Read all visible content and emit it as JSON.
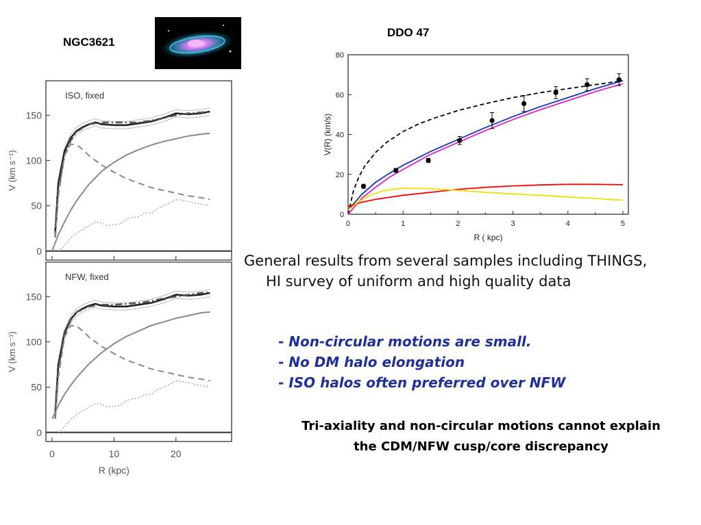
{
  "slide": {
    "ngc_title": "NGC3621",
    "ddo_title": "DDO 47",
    "general_line1": "General results  from several samples including THINGS,",
    "general_line2": "HI survey of uniform and high quality data",
    "bullets": [
      "Non-circular motions are small.",
      "No DM halo elongation",
      "ISO halos often  preferred over NFW"
    ],
    "conclusion_line1": "Tri-axiality and non-circular motions  cannot explain",
    "conclusion_line2": "the CDM/NFW cusp/core discrepancy",
    "colors": {
      "bullet_text": "#1f2f9e"
    }
  },
  "chart_data": [
    {
      "type": "line",
      "panel": "ISO, fixed",
      "xlabel": "R (kpc)",
      "ylabel": "V (km s⁻¹)",
      "xlim": [
        -1,
        29
      ],
      "ylim": [
        -10,
        188
      ],
      "xticks": [
        0,
        10,
        20
      ],
      "yticks": [
        0,
        50,
        100,
        150
      ],
      "series": [
        {
          "style": "observed-thick",
          "x": [
            0.5,
            1,
            2,
            3,
            4,
            5,
            6,
            7,
            8,
            10,
            12,
            14,
            16,
            18,
            20,
            22,
            24,
            25.5
          ],
          "y": [
            20,
            75,
            110,
            125,
            133,
            137,
            140,
            142,
            140,
            139,
            139,
            141,
            143,
            147,
            152,
            151,
            152,
            154
          ]
        },
        {
          "style": "model-dashdot",
          "x": [
            0.5,
            1,
            2,
            3,
            4,
            6,
            8,
            10,
            12,
            14,
            16,
            18,
            20,
            22,
            24,
            25.5
          ],
          "y": [
            15,
            68,
            105,
            122,
            132,
            140,
            142,
            142,
            142,
            142,
            144,
            147,
            150,
            152,
            153,
            154
          ]
        },
        {
          "style": "halo-solid",
          "x": [
            0,
            1,
            2,
            3,
            4,
            6,
            8,
            10,
            12,
            14,
            16,
            18,
            20,
            22,
            24,
            25.5
          ],
          "y": [
            0,
            18,
            32,
            45,
            56,
            74,
            88,
            98,
            106,
            112,
            117,
            121,
            124,
            127,
            129,
            130
          ]
        },
        {
          "style": "disk-dashed",
          "x": [
            0.5,
            1,
            2,
            3,
            4,
            5,
            6,
            8,
            10,
            12,
            14,
            16,
            18,
            20,
            22,
            24,
            25.5
          ],
          "y": [
            15,
            60,
            105,
            118,
            117,
            112,
            105,
            95,
            87,
            80,
            75,
            70,
            67,
            64,
            61,
            59,
            57
          ]
        },
        {
          "style": "gas-dotted",
          "x": [
            1,
            2,
            3,
            4,
            5,
            6,
            7,
            8,
            9,
            10,
            11,
            12,
            13,
            14,
            15,
            16,
            17,
            18,
            19,
            20,
            21,
            22,
            23,
            24,
            25.5
          ],
          "y": [
            0,
            6,
            14,
            20,
            24,
            28,
            32,
            31,
            28,
            29,
            30,
            35,
            37,
            38,
            42,
            42,
            47,
            50,
            53,
            57,
            56,
            55,
            53,
            52,
            50
          ]
        }
      ]
    },
    {
      "type": "line",
      "panel": "NFW, fixed",
      "xlabel": "R (kpc)",
      "ylabel": "V (km s⁻¹)",
      "xlim": [
        -1,
        29
      ],
      "ylim": [
        -10,
        188
      ],
      "xticks": [
        0,
        10,
        20
      ],
      "yticks": [
        0,
        50,
        100,
        150
      ],
      "series": [
        {
          "style": "observed-thick",
          "x": [
            0.5,
            1,
            2,
            3,
            4,
            5,
            6,
            7,
            8,
            10,
            12,
            14,
            16,
            18,
            20,
            22,
            24,
            25.5
          ],
          "y": [
            20,
            75,
            110,
            125,
            133,
            137,
            140,
            142,
            140,
            139,
            139,
            141,
            143,
            147,
            152,
            151,
            152,
            154
          ]
        },
        {
          "style": "model-dashdot",
          "x": [
            0.5,
            1,
            2,
            3,
            4,
            6,
            8,
            10,
            12,
            14,
            16,
            18,
            20,
            22,
            24,
            25.5
          ],
          "y": [
            15,
            70,
            108,
            124,
            133,
            139,
            141,
            141,
            142,
            143,
            145,
            148,
            150,
            152,
            154,
            155
          ]
        },
        {
          "style": "halo-solid",
          "x": [
            0,
            0.5,
            1,
            2,
            3,
            4,
            6,
            8,
            10,
            12,
            14,
            16,
            18,
            20,
            22,
            24,
            25.5
          ],
          "y": [
            15,
            22,
            30,
            42,
            52,
            61,
            76,
            88,
            98,
            106,
            112,
            118,
            122,
            126,
            129,
            132,
            133
          ]
        },
        {
          "style": "disk-dashed",
          "x": [
            0.5,
            1,
            2,
            3,
            4,
            5,
            6,
            8,
            10,
            12,
            14,
            16,
            18,
            20,
            22,
            24,
            25.5
          ],
          "y": [
            15,
            60,
            105,
            118,
            117,
            112,
            105,
            95,
            87,
            80,
            75,
            70,
            67,
            64,
            61,
            59,
            57
          ]
        },
        {
          "style": "gas-dotted",
          "x": [
            1,
            2,
            3,
            4,
            5,
            6,
            7,
            8,
            9,
            10,
            11,
            12,
            13,
            14,
            15,
            16,
            17,
            18,
            19,
            20,
            21,
            22,
            23,
            24,
            25.5
          ],
          "y": [
            0,
            6,
            14,
            20,
            24,
            28,
            32,
            31,
            28,
            29,
            30,
            35,
            37,
            38,
            42,
            42,
            47,
            50,
            53,
            57,
            56,
            55,
            53,
            52,
            50
          ]
        }
      ]
    },
    {
      "type": "line",
      "title": "DDO 47",
      "xlabel": "R ( kpc)",
      "ylabel": "V(R) (km/s)",
      "xlim": [
        0,
        5.1
      ],
      "ylim": [
        0,
        80
      ],
      "xticks": [
        0,
        1,
        2,
        3,
        4,
        5
      ],
      "yticks": [
        0,
        20,
        40,
        60,
        80
      ],
      "points": {
        "x": [
          0.28,
          0.87,
          1.46,
          2.03,
          2.62,
          3.2,
          3.78,
          4.35,
          4.93
        ],
        "y": [
          14,
          22,
          27,
          37,
          47,
          55.5,
          61,
          65,
          67.5
        ],
        "err": [
          1,
          1,
          1,
          2,
          4,
          4,
          3,
          3,
          3
        ]
      },
      "series": [
        {
          "color": "#000000",
          "dash": true,
          "x": [
            0,
            0.1,
            0.2,
            0.3,
            0.5,
            0.7,
            1,
            1.3,
            1.6,
            2,
            2.5,
            3,
            3.5,
            4,
            4.5,
            5
          ],
          "y": [
            0,
            12,
            19,
            24,
            31,
            36,
            41.5,
            45.5,
            48.5,
            52,
            55.5,
            58.5,
            61,
            63,
            65,
            67
          ]
        },
        {
          "color": "#1a2fc8",
          "x": [
            0,
            0.25,
            0.5,
            0.75,
            1,
            1.5,
            2,
            2.5,
            3,
            3.5,
            4,
            4.5,
            5
          ],
          "y": [
            2,
            10,
            16,
            20.5,
            24.5,
            31.5,
            37.5,
            43.5,
            49,
            54,
            58.5,
            63,
            67
          ]
        },
        {
          "color": "#e020d0",
          "x": [
            0,
            0.25,
            0.5,
            0.75,
            1,
            1.5,
            2,
            2.5,
            3,
            3.5,
            4,
            4.5,
            5
          ],
          "y": [
            0,
            8,
            13.5,
            18.5,
            22.5,
            30,
            36,
            42,
            47.5,
            52.5,
            57,
            61.5,
            65.5
          ]
        },
        {
          "color": "#ff0000",
          "x": [
            0,
            0.25,
            0.5,
            1,
            1.5,
            2,
            2.5,
            3,
            3.5,
            4,
            4.5,
            5
          ],
          "y": [
            4,
            6,
            7.5,
            9.5,
            11,
            12.5,
            13.5,
            14.2,
            14.7,
            15,
            15,
            14.8
          ]
        },
        {
          "color": "#f0e000",
          "x": [
            0,
            0.2,
            0.4,
            0.6,
            0.8,
            1,
            1.2,
            1.5,
            2,
            2.5,
            3,
            3.5,
            4,
            4.5,
            5
          ],
          "y": [
            2,
            6.5,
            9.5,
            11.5,
            12.5,
            13,
            13,
            12.8,
            12,
            11,
            10.2,
            9.5,
            8.7,
            7.9,
            7
          ]
        }
      ]
    }
  ]
}
